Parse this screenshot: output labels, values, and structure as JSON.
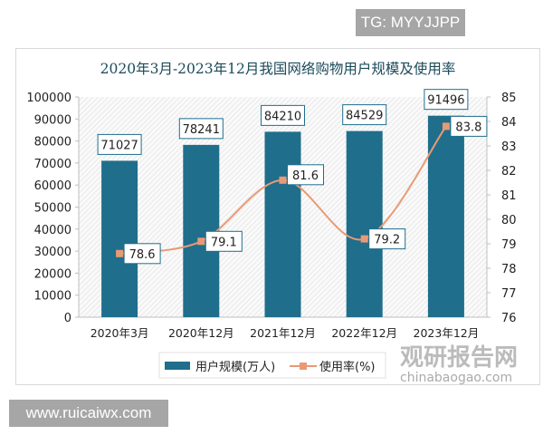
{
  "watermarks": {
    "tg": "TG: MYYJJPP",
    "site": "www.ruicaiwx.com",
    "brand_cn": "观研报告网",
    "brand_en": "chinabaogao.com"
  },
  "chart_data": {
    "type": "bar+line",
    "title": "2020年3月-2023年12月我国网络购物用户规模及使用率",
    "categories": [
      "2020年3月",
      "2020年12月",
      "2021年12月",
      "2022年12月",
      "2023年12月"
    ],
    "series": [
      {
        "name": "用户规模(万人)",
        "type": "bar",
        "axis": "left",
        "values": [
          71027,
          78241,
          84210,
          84529,
          91496
        ],
        "color": "#1f6e8c"
      },
      {
        "name": "使用率(%)",
        "type": "line",
        "axis": "right",
        "values": [
          78.6,
          79.1,
          81.6,
          79.2,
          83.8
        ],
        "color": "#e89a74"
      }
    ],
    "y_left": {
      "range": [
        0,
        100000
      ],
      "ticks": [
        0,
        10000,
        20000,
        30000,
        40000,
        50000,
        60000,
        70000,
        80000,
        90000,
        100000
      ]
    },
    "y_right": {
      "range": [
        76,
        85
      ],
      "ticks": [
        76,
        77,
        78,
        79,
        80,
        81,
        82,
        83,
        84,
        85
      ]
    },
    "legend": "bottom",
    "grid": false
  }
}
